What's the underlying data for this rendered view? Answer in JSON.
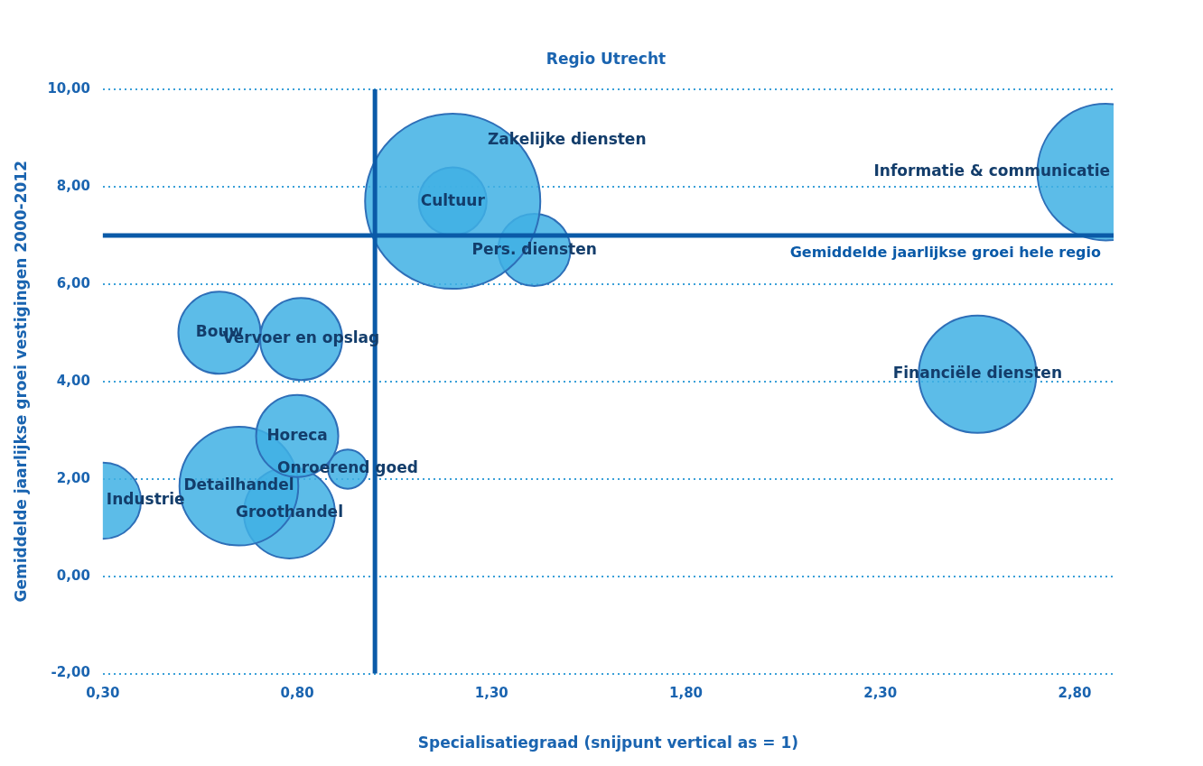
{
  "chart_data": {
    "type": "bubble",
    "title": "Regio Utrecht",
    "xlabel": "Specialisatiegraad (snijpunt vertical as = 1)",
    "ylabel": "Gemiddelde jaarlijkse groei vestigingen 2000-2012",
    "xlim": [
      0.3,
      2.9
    ],
    "xticks": [
      {
        "value": 0.3,
        "label": "0,30"
      },
      {
        "value": 0.8,
        "label": "0,80"
      },
      {
        "value": 1.3,
        "label": "1,30"
      },
      {
        "value": 1.8,
        "label": "1,80"
      },
      {
        "value": 2.3,
        "label": "2,30"
      },
      {
        "value": 2.8,
        "label": "2,80"
      }
    ],
    "ylim": [
      -2,
      10
    ],
    "yticks": [
      {
        "value": -2,
        "label": "-2,00"
      },
      {
        "value": 0,
        "label": "0,00"
      },
      {
        "value": 2,
        "label": "2,00"
      },
      {
        "value": 4,
        "label": "4,00"
      },
      {
        "value": 6,
        "label": "6,00"
      },
      {
        "value": 8,
        "label": "8,00"
      },
      {
        "value": 10,
        "label": "10,00"
      }
    ],
    "grid": "y",
    "legend": false,
    "ref_lines": [
      {
        "axis": "x",
        "value": 1,
        "label": null,
        "color": "#0a5aa8"
      },
      {
        "axis": "y",
        "value": 7,
        "label": "Gemiddelde jaarlijkse groei hele regio",
        "color": "#0a5aa8"
      }
    ],
    "series": [
      {
        "name": "Zakelijke diensten",
        "color": "#3fb0e4",
        "x": [
          1.2
        ],
        "values": [
          7.7
        ],
        "sizes": [
          1
        ]
      },
      {
        "name": "Cultuur",
        "color": "#3fb0e4",
        "x": [
          1.2
        ],
        "values": [
          7.7
        ],
        "sizes": [
          0.15
        ]
      },
      {
        "name": "Pers. diensten",
        "color": "#3fb0e4",
        "x": [
          1.41
        ],
        "values": [
          6.7
        ],
        "sizes": [
          0.17
        ]
      },
      {
        "name": "Informatie & communicatie",
        "color": "#3fb0e4",
        "x": [
          2.88
        ],
        "values": [
          8.3
        ],
        "sizes": [
          0.61
        ]
      },
      {
        "name": "Financiële diensten",
        "color": "#3fb0e4",
        "x": [
          2.55
        ],
        "values": [
          4.15
        ],
        "sizes": [
          0.45
        ]
      },
      {
        "name": "Bouw",
        "color": "#3fb0e4",
        "x": [
          0.6
        ],
        "values": [
          5.0
        ],
        "sizes": [
          0.22
        ]
      },
      {
        "name": "Vervoer en opslag",
        "color": "#3fb0e4",
        "x": [
          0.81
        ],
        "values": [
          4.87
        ],
        "sizes": [
          0.22
        ]
      },
      {
        "name": "Horeca",
        "color": "#3fb0e4",
        "x": [
          0.8
        ],
        "values": [
          2.88
        ],
        "sizes": [
          0.22
        ]
      },
      {
        "name": "Onroerend goed",
        "color": "#3fb0e4",
        "x": [
          0.93
        ],
        "values": [
          2.2
        ],
        "sizes": [
          0.05
        ]
      },
      {
        "name": "Detailhandel",
        "color": "#3fb0e4",
        "x": [
          0.65
        ],
        "values": [
          1.85
        ],
        "sizes": [
          0.46
        ]
      },
      {
        "name": "Groothandel",
        "color": "#3fb0e4",
        "x": [
          0.78
        ],
        "values": [
          1.3
        ],
        "sizes": [
          0.27
        ]
      },
      {
        "name": "Industrie",
        "color": "#3fb0e4",
        "x": [
          0.3
        ],
        "values": [
          1.55
        ],
        "sizes": [
          0.19
        ]
      }
    ]
  }
}
